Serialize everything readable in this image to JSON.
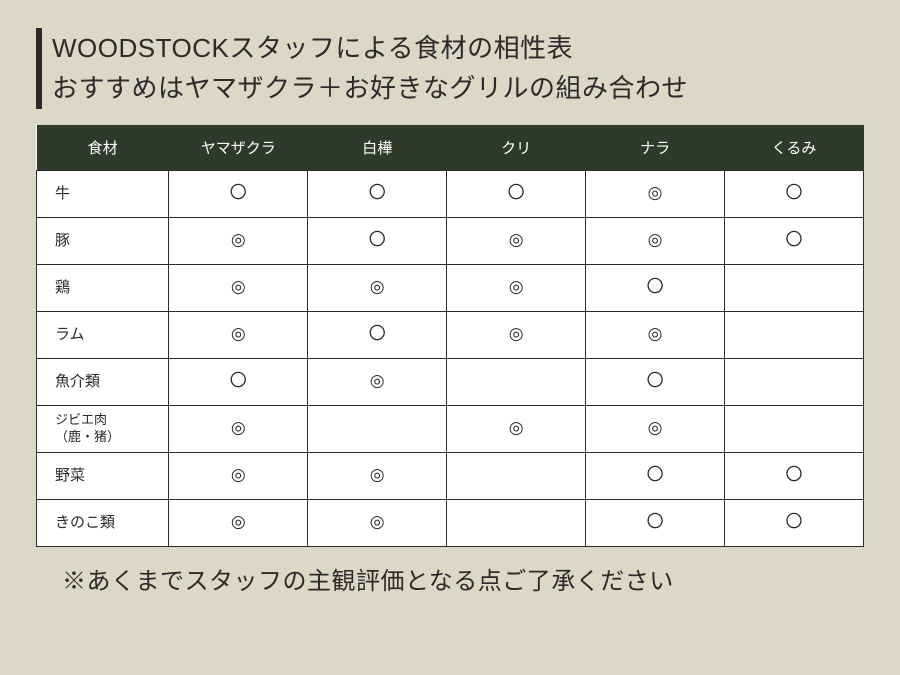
{
  "title": {
    "line1": "WOODSTOCKスタッフによる食材の相性表",
    "line2": "おすすめはヤマザクラ＋お好きなグリルの組み合わせ"
  },
  "table": {
    "header_bg": "#2e3b2b",
    "header_fg": "#ffffff",
    "cell_bg": "#ffffff",
    "border_color": "#2a2a2a",
    "columns": [
      "食材",
      "ヤマザクラ",
      "白樺",
      "クリ",
      "ナラ",
      "くるみ"
    ],
    "rows": [
      {
        "label": "牛",
        "cells": [
          "〇",
          "〇",
          "〇",
          "◎",
          "〇"
        ]
      },
      {
        "label": "豚",
        "cells": [
          "◎",
          "〇",
          "◎",
          "◎",
          "〇"
        ]
      },
      {
        "label": "鶏",
        "cells": [
          "◎",
          "◎",
          "◎",
          "〇",
          ""
        ]
      },
      {
        "label": "ラム",
        "cells": [
          "◎",
          "〇",
          "◎",
          "◎",
          ""
        ]
      },
      {
        "label": "魚介類",
        "cells": [
          "〇",
          "◎",
          "",
          "〇",
          ""
        ]
      },
      {
        "label": "ジビエ肉\n（鹿・猪）",
        "small": true,
        "cells": [
          "◎",
          "",
          "◎",
          "◎",
          ""
        ]
      },
      {
        "label": "野菜",
        "cells": [
          "◎",
          "◎",
          "",
          "〇",
          "〇"
        ]
      },
      {
        "label": "きのこ類",
        "cells": [
          "◎",
          "◎",
          "",
          "〇",
          "〇"
        ]
      }
    ]
  },
  "footnote": "※あくまでスタッフの主観評価となる点ご了承ください"
}
